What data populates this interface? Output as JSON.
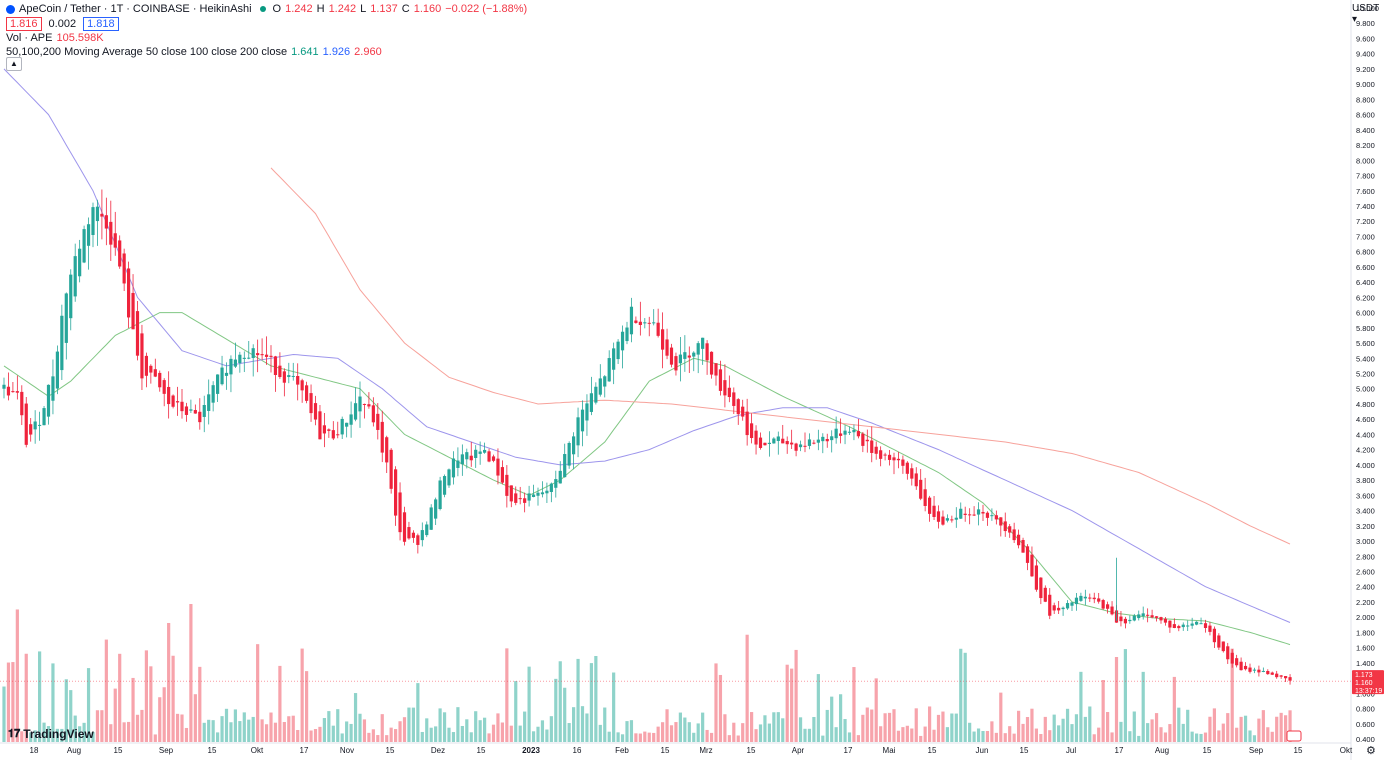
{
  "legend": {
    "symbol": "ApeCoin / Tether · 1T · COINBASE · HeikinAshi",
    "o_label": "O",
    "o": "1.242",
    "h_label": "H",
    "h": "1.242",
    "l_label": "L",
    "l": "1.137",
    "c_label": "C",
    "c": "1.160",
    "change": "−0.022 (−1.88%)",
    "bid": "1.816",
    "spread": "0.002",
    "ask": "1.818",
    "vol_label": "Vol · APE",
    "vol_value": "105.598K",
    "ma_label": "50,100,200 Moving Average 50 close 100 close 200 close",
    "ma50": "1.641",
    "ma100": "1.926",
    "ma200": "2.960",
    "collapse_icon": "chevron-up-icon"
  },
  "currency_button": "USDT ▾",
  "brand": "TradingView",
  "price_badges": [
    "1.173",
    "1.160",
    "13:37:19"
  ],
  "colors": {
    "up": "#26a69a",
    "down": "#ef233c",
    "vol_up": "#8fd3ca",
    "vol_down": "#f7a3ab",
    "ma50": "#81c784",
    "ma100": "#9d95ec",
    "ma200": "#f7a29b"
  },
  "chart_data": {
    "type": "candlestick",
    "title": "ApeCoin / Tether · 1T · COINBASE · HeikinAshi",
    "xlabel": "",
    "ylabel": "USDT",
    "ylim": [
      0.3,
      10.0
    ],
    "y_ticks": [
      "10.000",
      "9.800",
      "9.600",
      "9.400",
      "9.200",
      "9.000",
      "8.800",
      "8.600",
      "8.400",
      "8.200",
      "8.000",
      "7.800",
      "7.600",
      "7.400",
      "7.200",
      "7.000",
      "6.800",
      "6.600",
      "6.400",
      "6.200",
      "6.000",
      "5.800",
      "5.600",
      "5.400",
      "5.200",
      "5.000",
      "4.800",
      "4.600",
      "4.400",
      "4.200",
      "4.000",
      "3.800",
      "3.600",
      "3.400",
      "3.200",
      "3.000",
      "2.800",
      "2.600",
      "2.400",
      "2.200",
      "2.000",
      "1.800",
      "1.600",
      "1.400",
      "1.200",
      "1.000",
      "0.800",
      "0.600",
      "0.400"
    ],
    "x_ticks": [
      "18",
      "Aug",
      "15",
      "Sep",
      "15",
      "Okt",
      "17",
      "Nov",
      "15",
      "Dez",
      "15",
      "2023",
      "16",
      "Feb",
      "15",
      "Mrz",
      "15",
      "Apr",
      "17",
      "Mai",
      "15",
      "Jun",
      "15",
      "Jul",
      "17",
      "Aug",
      "15",
      "Sep",
      "15",
      "Okt"
    ],
    "anchors": [
      [
        0,
        5.0
      ],
      [
        3,
        4.9
      ],
      [
        5,
        4.3
      ],
      [
        8,
        4.6
      ],
      [
        11,
        5.2
      ],
      [
        14,
        6.3
      ],
      [
        17,
        6.9
      ],
      [
        20,
        7.4
      ],
      [
        23,
        7.2
      ],
      [
        26,
        6.6
      ],
      [
        29,
        5.7
      ],
      [
        31,
        5.2
      ],
      [
        34,
        5.1
      ],
      [
        37,
        4.8
      ],
      [
        41,
        4.7
      ],
      [
        44,
        4.6
      ],
      [
        47,
        5.0
      ],
      [
        50,
        5.3
      ],
      [
        53,
        5.5
      ],
      [
        56,
        5.5
      ],
      [
        59,
        5.4
      ],
      [
        62,
        5.2
      ],
      [
        65,
        5.1
      ],
      [
        68,
        4.8
      ],
      [
        71,
        4.4
      ],
      [
        74,
        4.4
      ],
      [
        77,
        4.6
      ],
      [
        80,
        4.9
      ],
      [
        83,
        4.6
      ],
      [
        86,
        4.0
      ],
      [
        88,
        3.3
      ],
      [
        90,
        3.0
      ],
      [
        93,
        3.0
      ],
      [
        96,
        3.4
      ],
      [
        99,
        3.9
      ],
      [
        102,
        4.1
      ],
      [
        105,
        4.1
      ],
      [
        108,
        4.2
      ],
      [
        111,
        3.9
      ],
      [
        114,
        3.5
      ],
      [
        117,
        3.55
      ],
      [
        120,
        3.6
      ],
      [
        123,
        3.7
      ],
      [
        126,
        4.1
      ],
      [
        129,
        4.6
      ],
      [
        132,
        4.9
      ],
      [
        135,
        5.2
      ],
      [
        138,
        5.6
      ],
      [
        141,
        6.0
      ],
      [
        144,
        5.9
      ],
      [
        146,
        5.85
      ],
      [
        148,
        5.6
      ],
      [
        151,
        5.3
      ],
      [
        154,
        5.5
      ],
      [
        157,
        5.6
      ],
      [
        160,
        5.1
      ],
      [
        163,
        4.9
      ],
      [
        166,
        4.6
      ],
      [
        169,
        4.2
      ],
      [
        172,
        4.3
      ],
      [
        175,
        4.3
      ],
      [
        178,
        4.25
      ],
      [
        181,
        4.3
      ],
      [
        184,
        4.35
      ],
      [
        187,
        4.4
      ],
      [
        190,
        4.5
      ],
      [
        193,
        4.3
      ],
      [
        196,
        4.15
      ],
      [
        199,
        4.1
      ],
      [
        202,
        3.95
      ],
      [
        205,
        3.75
      ],
      [
        208,
        3.3
      ],
      [
        211,
        3.25
      ],
      [
        214,
        3.35
      ],
      [
        217,
        3.4
      ],
      [
        220,
        3.4
      ],
      [
        223,
        3.25
      ],
      [
        226,
        3.15
      ],
      [
        229,
        2.85
      ],
      [
        232,
        2.4
      ],
      [
        235,
        2.05
      ],
      [
        238,
        2.1
      ],
      [
        241,
        2.25
      ],
      [
        244,
        2.25
      ],
      [
        247,
        2.15
      ],
      [
        250,
        1.95
      ],
      [
        252,
        1.95
      ],
      [
        254,
        2.0
      ],
      [
        257,
        2.05
      ],
      [
        260,
        1.95
      ],
      [
        263,
        1.85
      ],
      [
        266,
        1.9
      ],
      [
        269,
        1.95
      ],
      [
        272,
        1.7
      ],
      [
        275,
        1.45
      ],
      [
        278,
        1.3
      ],
      [
        281,
        1.3
      ],
      [
        284,
        1.27
      ],
      [
        287,
        1.2
      ],
      [
        289,
        1.16
      ]
    ],
    "series": [
      {
        "name": "HeikinAshi candles (close)",
        "values": "daily Heikin-Ashi candles traced along anchors"
      },
      {
        "name": "MA 50",
        "last": 1.641,
        "anchors": [
          [
            0,
            5.3
          ],
          [
            10,
            4.9
          ],
          [
            15,
            5.1
          ],
          [
            25,
            5.7
          ],
          [
            35,
            6.0
          ],
          [
            40,
            6.0
          ],
          [
            50,
            5.65
          ],
          [
            60,
            5.3
          ],
          [
            70,
            5.15
          ],
          [
            80,
            5.0
          ],
          [
            90,
            4.4
          ],
          [
            100,
            4.1
          ],
          [
            110,
            3.8
          ],
          [
            118,
            3.6
          ],
          [
            125,
            3.8
          ],
          [
            135,
            4.3
          ],
          [
            145,
            5.1
          ],
          [
            155,
            5.4
          ],
          [
            162,
            5.3
          ],
          [
            175,
            4.9
          ],
          [
            190,
            4.5
          ],
          [
            200,
            4.2
          ],
          [
            210,
            3.9
          ],
          [
            220,
            3.5
          ],
          [
            230,
            2.9
          ],
          [
            240,
            2.2
          ],
          [
            250,
            2.05
          ],
          [
            260,
            1.98
          ],
          [
            270,
            1.95
          ],
          [
            280,
            1.8
          ],
          [
            289,
            1.64
          ]
        ]
      },
      {
        "name": "MA 100",
        "last": 1.926,
        "anchors": [
          [
            0,
            9.2
          ],
          [
            10,
            8.6
          ],
          [
            20,
            7.6
          ],
          [
            30,
            6.2
          ],
          [
            40,
            5.5
          ],
          [
            50,
            5.3
          ],
          [
            60,
            5.4
          ],
          [
            65,
            5.45
          ],
          [
            75,
            5.4
          ],
          [
            85,
            5.0
          ],
          [
            95,
            4.5
          ],
          [
            105,
            4.3
          ],
          [
            115,
            4.1
          ],
          [
            125,
            4.0
          ],
          [
            135,
            4.05
          ],
          [
            145,
            4.2
          ],
          [
            155,
            4.45
          ],
          [
            165,
            4.65
          ],
          [
            175,
            4.75
          ],
          [
            185,
            4.75
          ],
          [
            195,
            4.55
          ],
          [
            210,
            4.2
          ],
          [
            225,
            3.8
          ],
          [
            240,
            3.4
          ],
          [
            255,
            2.9
          ],
          [
            270,
            2.4
          ],
          [
            280,
            2.15
          ],
          [
            289,
            1.93
          ]
        ]
      },
      {
        "name": "MA 200",
        "last": 2.96,
        "anchors": [
          [
            60,
            7.9
          ],
          [
            70,
            7.3
          ],
          [
            80,
            6.3
          ],
          [
            90,
            5.6
          ],
          [
            100,
            5.15
          ],
          [
            110,
            4.95
          ],
          [
            120,
            4.8
          ],
          [
            135,
            4.85
          ],
          [
            150,
            4.8
          ],
          [
            165,
            4.7
          ],
          [
            180,
            4.6
          ],
          [
            195,
            4.5
          ],
          [
            210,
            4.4
          ],
          [
            225,
            4.3
          ],
          [
            240,
            4.15
          ],
          [
            255,
            3.9
          ],
          [
            270,
            3.5
          ],
          [
            280,
            3.2
          ],
          [
            289,
            2.96
          ]
        ]
      },
      {
        "name": "Vol · APE",
        "last": "105.598K",
        "values": "daily volume histogram"
      }
    ],
    "last_price": 1.16,
    "legend": [
      "HeikinAshi",
      "Vol · APE",
      "MA 50",
      "MA 100",
      "MA 200"
    ],
    "grid": false
  }
}
